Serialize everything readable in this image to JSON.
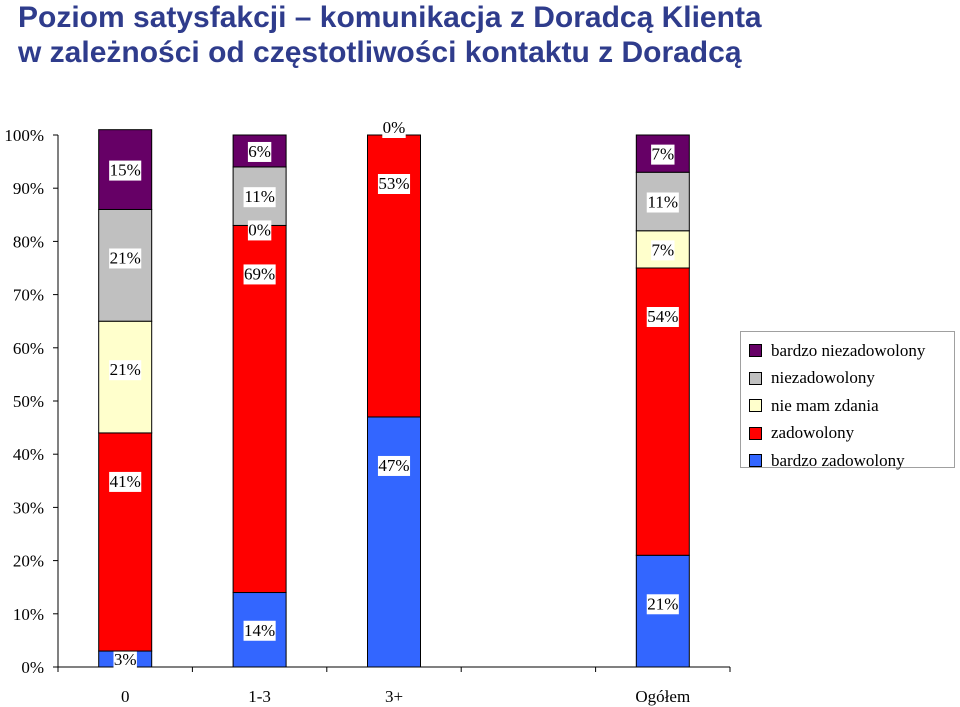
{
  "title": {
    "line1": "Poziom satysfakcji – komunikacja z Doradcą Klienta",
    "line2": "w zależności od częstotliwości kontaktu z Doradcą"
  },
  "chart_data": {
    "type": "bar",
    "stacked": true,
    "categories": [
      "0",
      "1-3",
      "3+",
      "",
      "Ogółem"
    ],
    "y_ticks": [
      "0%",
      "10%",
      "20%",
      "30%",
      "40%",
      "50%",
      "60%",
      "70%",
      "80%",
      "90%",
      "100%"
    ],
    "ylim": [
      0,
      100
    ],
    "legend_position": "right",
    "series": [
      {
        "name": "bardzo zadowolony",
        "color": "#3366ff",
        "values": [
          3,
          14,
          47,
          null,
          21
        ],
        "labels": [
          "3%",
          "14%",
          "47%",
          "",
          "21%"
        ]
      },
      {
        "name": "zadowolony",
        "color": "#ff0000",
        "values": [
          41,
          69,
          53,
          null,
          54
        ],
        "labels": [
          "41%",
          "69%",
          "53%",
          "",
          "54%"
        ]
      },
      {
        "name": "nie mam zdania",
        "color": "#ffffcc",
        "values": [
          21,
          0,
          0,
          null,
          7
        ],
        "labels": [
          "21%",
          "",
          "",
          "",
          "7%"
        ]
      },
      {
        "name": "niezadowolony",
        "color": "#c0c0c0",
        "values": [
          21,
          11,
          0,
          null,
          11
        ],
        "labels": [
          "21%",
          "11%",
          "",
          "",
          "11%"
        ]
      },
      {
        "name": "bardzo niezadowolony",
        "color": "#660066",
        "values": [
          15,
          6,
          0,
          null,
          7
        ],
        "labels": [
          "15%",
          "6%",
          "0%",
          "",
          "7%"
        ]
      }
    ],
    "extra_labels": [
      {
        "category": 1,
        "series": 2,
        "text": "0%"
      }
    ]
  }
}
